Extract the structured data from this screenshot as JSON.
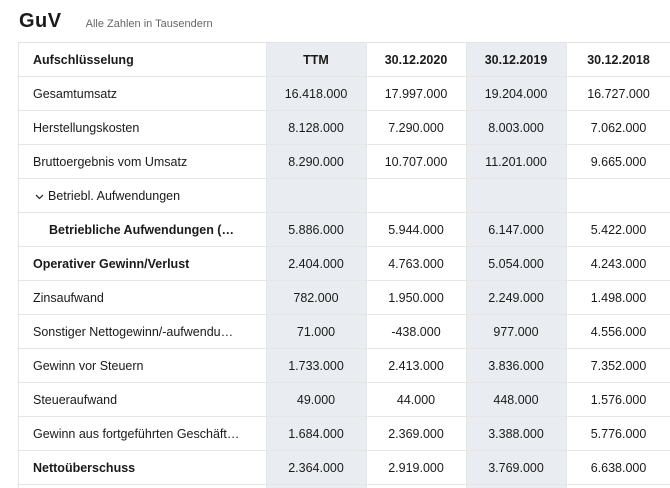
{
  "header": {
    "title": "GuV",
    "subtitle": "Alle Zahlen in Tausendern"
  },
  "table": {
    "columns": [
      "Aufschlüsselung",
      "TTM",
      "30.12.2020",
      "30.12.2019",
      "30.12.2018"
    ],
    "rows": [
      {
        "label": "Gesamtumsatz",
        "values": [
          "16.418.000",
          "17.997.000",
          "19.204.000",
          "16.727.000"
        ]
      },
      {
        "label": "Herstellungskosten",
        "values": [
          "8.128.000",
          "7.290.000",
          "8.003.000",
          "7.062.000"
        ]
      },
      {
        "label": "Bruttoergebnis vom Umsatz",
        "values": [
          "8.290.000",
          "10.707.000",
          "11.201.000",
          "9.665.000"
        ]
      },
      {
        "label": "Betriebl. Aufwendungen",
        "values": [
          "",
          "",
          "",
          ""
        ]
      },
      {
        "label": "Betriebliche Aufwendungen (…",
        "values": [
          "5.886.000",
          "5.944.000",
          "6.147.000",
          "5.422.000"
        ]
      },
      {
        "label": "Operativer Gewinn/Verlust",
        "values": [
          "2.404.000",
          "4.763.000",
          "5.054.000",
          "4.243.000"
        ]
      },
      {
        "label": "Zinsaufwand",
        "values": [
          "782.000",
          "1.950.000",
          "2.249.000",
          "1.498.000"
        ]
      },
      {
        "label": "Sonstiger Nettogewinn/-aufwendu…",
        "values": [
          "71.000",
          "-438.000",
          "977.000",
          "4.556.000"
        ]
      },
      {
        "label": "Gewinn vor Steuern",
        "values": [
          "1.733.000",
          "2.413.000",
          "3.836.000",
          "7.352.000"
        ]
      },
      {
        "label": "Steueraufwand",
        "values": [
          "49.000",
          "44.000",
          "448.000",
          "1.576.000"
        ]
      },
      {
        "label": "Gewinn aus fortgeführten Geschäft…",
        "values": [
          "1.684.000",
          "2.369.000",
          "3.388.000",
          "5.776.000"
        ]
      },
      {
        "label": "Nettoüberschuss",
        "values": [
          "2.364.000",
          "2.919.000",
          "3.769.000",
          "6.638.000"
        ]
      }
    ]
  },
  "icons": {
    "expand": "chevron-down-icon"
  },
  "colors": {
    "shaded_column": "#e9edf2",
    "border": "#e6e6e6",
    "subtitle": "#666666"
  }
}
